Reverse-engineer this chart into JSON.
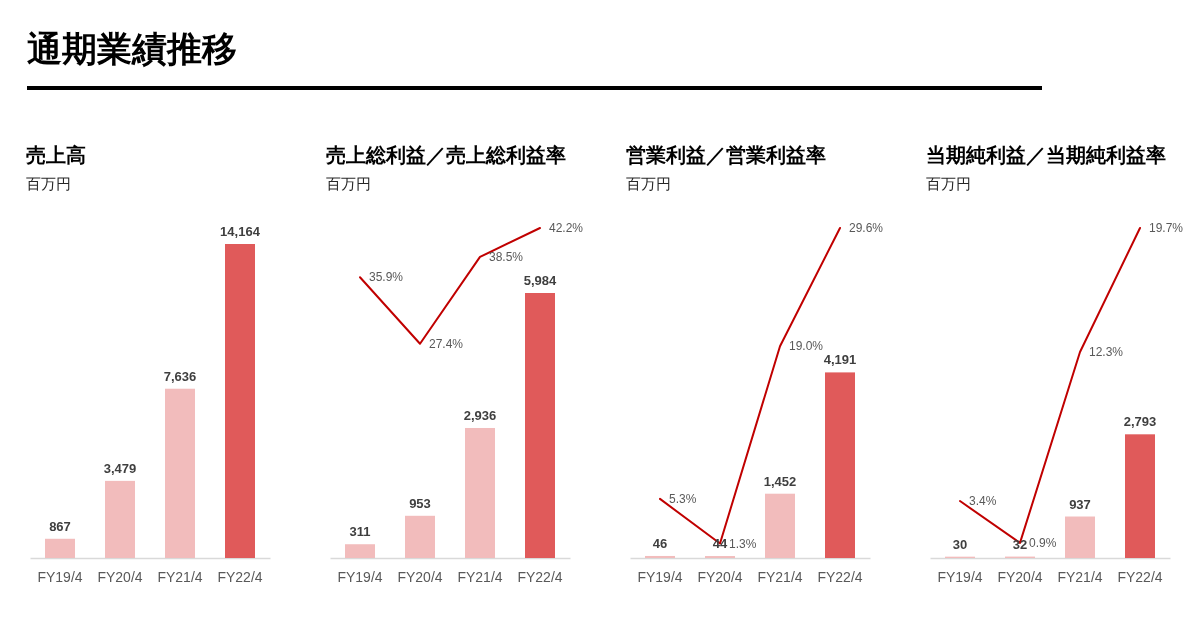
{
  "chart_data": [
    {
      "type": "other",
      "title": "通期業績推移"
    },
    {
      "type": "bar",
      "title": "売上高",
      "subtitle": "百万円",
      "categories": [
        "FY19/4",
        "FY20/4",
        "FY21/4",
        "FY22/4"
      ],
      "values": [
        867,
        3479,
        7636,
        14164
      ],
      "colors": [
        "#f2bcbc",
        "#f2bcbc",
        "#f2bcbc",
        "#e05a5a"
      ],
      "value_labels": [
        "867",
        "3,479",
        "7,636",
        "14,164"
      ],
      "tick_labels": "x"
    },
    {
      "type": "bar",
      "title": "売上総利益／売上総利益率",
      "subtitle": "百万円",
      "categories": [
        "FY19/4",
        "FY20/4",
        "FY21/4",
        "FY22/4"
      ],
      "series": [
        {
          "type": "bar",
          "values": [
            311,
            953,
            2936,
            5984
          ],
          "colors": [
            "#f2bcbc",
            "#f2bcbc",
            "#f2bcbc",
            "#e05a5a"
          ],
          "value_labels": [
            "311",
            "953",
            "2,936",
            "5,984"
          ]
        },
        {
          "type": "line",
          "axis": "y2",
          "color": "#c00000",
          "values": [
            35.9,
            27.4,
            38.5,
            42.2
          ],
          "value_labels": [
            "35.9%",
            "27.4%",
            "38.5%",
            "42.2%"
          ]
        }
      ],
      "tick_labels": "x"
    },
    {
      "type": "bar",
      "title": "営業利益／営業利益率",
      "subtitle": "百万円",
      "categories": [
        "FY19/4",
        "FY20/4",
        "FY21/4",
        "FY22/4"
      ],
      "series": [
        {
          "type": "bar",
          "values": [
            46,
            44,
            1452,
            4191
          ],
          "colors": [
            "#f2bcbc",
            "#f2bcbc",
            "#f2bcbc",
            "#e05a5a"
          ],
          "value_labels": [
            "46",
            "44",
            "1,452",
            "4,191"
          ]
        },
        {
          "type": "line",
          "axis": "y2",
          "color": "#c00000",
          "values": [
            5.3,
            1.3,
            19.0,
            29.6
          ],
          "value_labels": [
            "5.3%",
            "1.3%",
            "19.0%",
            "29.6%"
          ]
        }
      ],
      "tick_labels": "x"
    },
    {
      "type": "bar",
      "title": "当期純利益／当期純利益率",
      "subtitle": "百万円",
      "categories": [
        "FY19/4",
        "FY20/4",
        "FY21/4",
        "FY22/4"
      ],
      "series": [
        {
          "type": "bar",
          "values": [
            30,
            32,
            937,
            2793
          ],
          "colors": [
            "#f2bcbc",
            "#f2bcbc",
            "#f2bcbc",
            "#e05a5a"
          ],
          "value_labels": [
            "30",
            "32",
            "937",
            "2,793"
          ]
        },
        {
          "type": "line",
          "axis": "y2",
          "color": "#c00000",
          "values": [
            3.4,
            0.9,
            12.3,
            19.7
          ],
          "value_labels": [
            "3.4%",
            "0.9%",
            "12.3%",
            "19.7%"
          ]
        }
      ],
      "tick_labels": "x"
    }
  ]
}
